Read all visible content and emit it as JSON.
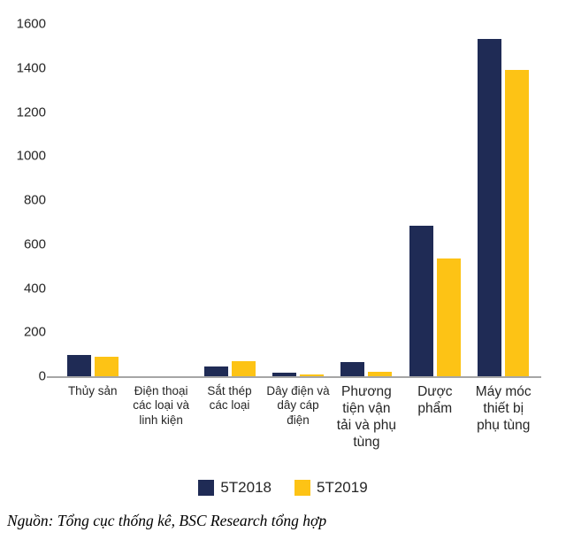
{
  "chart_data": {
    "type": "bar",
    "categories": [
      "Thủy sản",
      "Điện thoại các loại và linh kiện",
      "Sắt thép các loại",
      "Dây điện và dây cáp điện",
      "Phương tiện vận tải và phụ tùng",
      "Dược phẩm",
      "Máy móc thiết bị phụ tùng"
    ],
    "series": [
      {
        "name": "5T2018",
        "color": "#1F2B55",
        "values": [
          95,
          2,
          45,
          15,
          65,
          685,
          1530
        ]
      },
      {
        "name": "5T2019",
        "color": "#FDC315",
        "values": [
          90,
          2,
          70,
          10,
          20,
          535,
          1390
        ]
      }
    ],
    "title": "",
    "xlabel": "",
    "ylabel": "",
    "ylim": [
      0,
      1600
    ],
    "yticks": [
      0,
      200,
      400,
      600,
      800,
      1000,
      1200,
      1400,
      1600
    ],
    "grid": false,
    "legend_position": "bottom"
  },
  "source_note": "Nguồn: Tổng cục thống kê, BSC Research tổng hợp",
  "colors": {
    "series_2018": "#1F2B55",
    "series_2019": "#FDC315",
    "axis_line": "#A6A6A6",
    "text": "#262626"
  }
}
